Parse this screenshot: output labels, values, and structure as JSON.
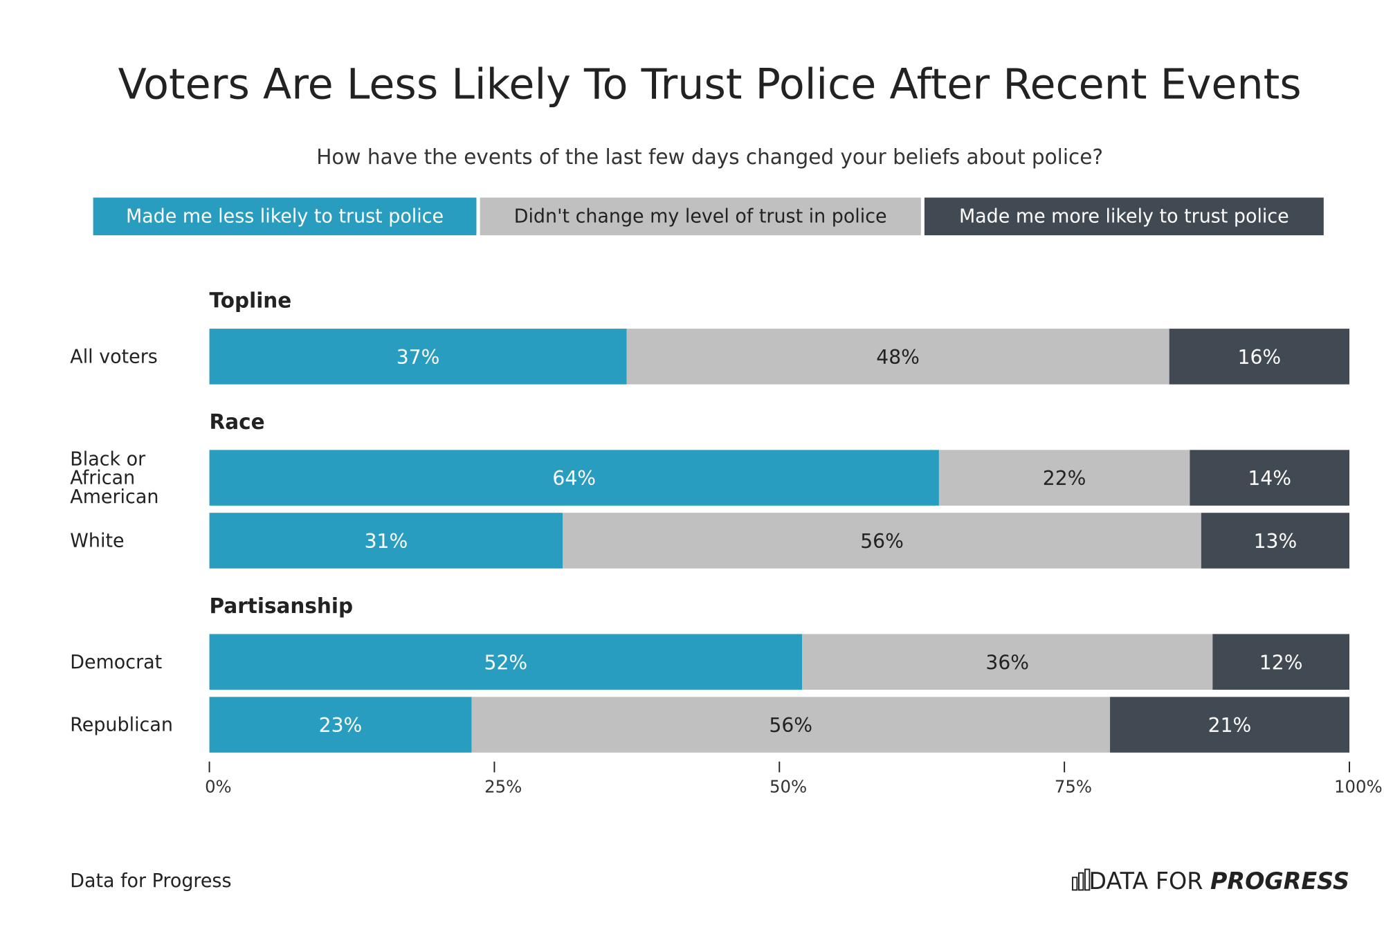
{
  "chart_data": {
    "type": "stacked_bar_horizontal",
    "title": "Voters Are Less Likely To Trust Police After Recent Events",
    "subtitle": "How have the events of the last few days changed your beliefs about police?",
    "groups": [
      {
        "name": "Topline",
        "categories": [
          "All voters"
        ]
      },
      {
        "name": "Race",
        "categories": [
          "Black or African American",
          "White"
        ]
      },
      {
        "name": "Partisanship",
        "categories": [
          "Democrat",
          "Republican"
        ]
      }
    ],
    "series": [
      {
        "name": "Made me less likely to trust police",
        "color": "#299dc0",
        "values": [
          36.6,
          64,
          31,
          52,
          23
        ],
        "value_labels": [
          "37%",
          "64%",
          "31%",
          "52%",
          "23%"
        ]
      },
      {
        "name": "Didn't change my level of trust in police",
        "color": "#bfc0bf",
        "values": [
          47.6,
          22,
          56,
          36,
          56
        ],
        "value_labels": [
          "48%",
          "22%",
          "56%",
          "36%",
          "56%"
        ]
      },
      {
        "name": "Made me more likely to trust police",
        "color": "#414952",
        "values": [
          15.8,
          14,
          13,
          12,
          21
        ],
        "value_labels": [
          "16%",
          "14%",
          "13%",
          "12%",
          "21%"
        ]
      }
    ],
    "xlim": [
      0,
      100
    ],
    "xticks": [
      {
        "value": 0,
        "label": "0%"
      },
      {
        "value": 25,
        "label": "25%"
      },
      {
        "value": 50,
        "label": "50%"
      },
      {
        "value": 75,
        "label": "75%"
      },
      {
        "value": 100,
        "label": "100%"
      }
    ],
    "source": "Data for Progress",
    "logo": {
      "light": "DATA FOR",
      "bold": "PROGRESS"
    }
  }
}
